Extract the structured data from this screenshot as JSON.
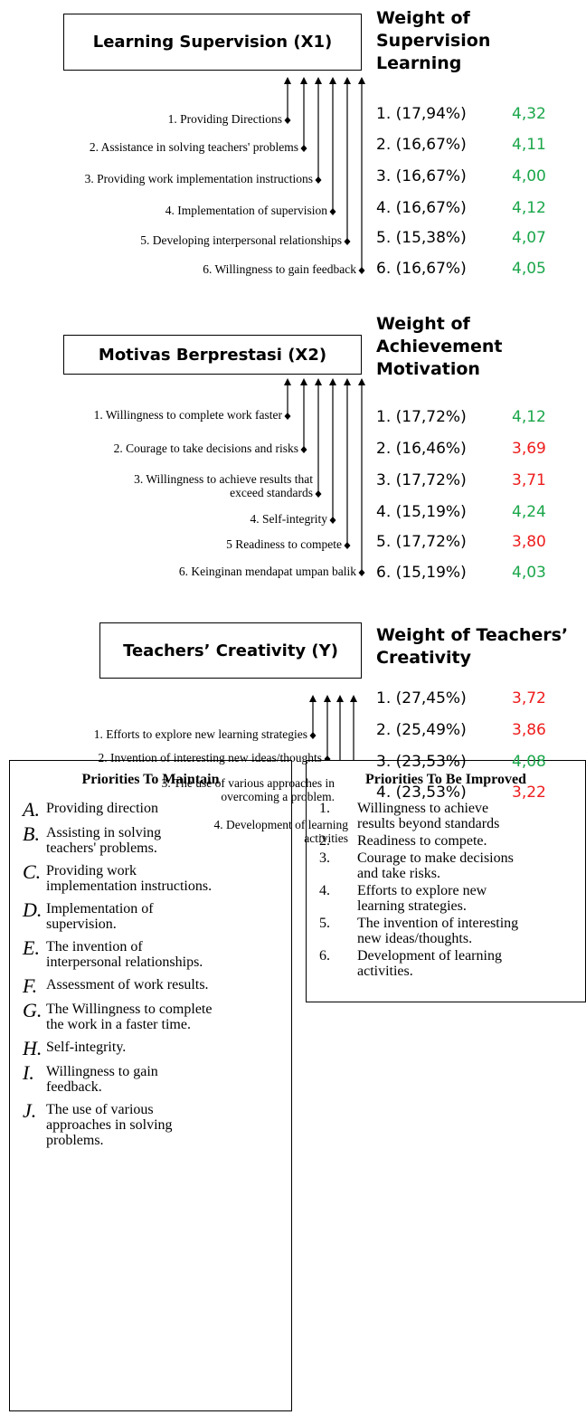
{
  "sections": [
    {
      "box": "Learning Supervision (X1)",
      "heading_lines": [
        "Weight of",
        "Supervision",
        "Learning"
      ],
      "items": [
        {
          "label_lines": [
            "1. Providing Directions"
          ],
          "weight": "1. (17,94%)",
          "score": "4,32",
          "color": "#1aa64a"
        },
        {
          "label_lines": [
            "2. Assistance in solving teachers' problems"
          ],
          "weight": "2. (16,67%)",
          "score": "4,11",
          "color": "#1aa64a"
        },
        {
          "label_lines": [
            "3. Providing work implementation instructions"
          ],
          "weight": "3. (16,67%)",
          "score": "4,00",
          "color": "#1aa64a"
        },
        {
          "label_lines": [
            "4. Implementation of supervision"
          ],
          "weight": "4. (16,67%)",
          "score": "4,12",
          "color": "#1aa64a"
        },
        {
          "label_lines": [
            "5. Developing interpersonal relationships"
          ],
          "weight": "5. (15,38%)",
          "score": "4,07",
          "color": "#1aa64a"
        },
        {
          "label_lines": [
            "6. Willingness to gain feedback"
          ],
          "weight": "6. (16,67%)",
          "score": "4,05",
          "color": "#1aa64a"
        }
      ]
    },
    {
      "box": "Motivas Berprestasi (X2)",
      "heading_lines": [
        "Weight of",
        "Achievement",
        "Motivation"
      ],
      "items": [
        {
          "label_lines": [
            "1. Willingness to complete work faster"
          ],
          "weight": "1. (17,72%)",
          "score": "4,12",
          "color": "#1aa64a"
        },
        {
          "label_lines": [
            "2. Courage to take decisions and risks"
          ],
          "weight": "2. (16,46%)",
          "score": "3,69",
          "color": "#ee1c1c"
        },
        {
          "label_lines": [
            "3. Willingness to achieve results that",
            "exceed standards"
          ],
          "weight": "3. (17,72%)",
          "score": "3,71",
          "color": "#ee1c1c"
        },
        {
          "label_lines": [
            "4. Self-integrity"
          ],
          "weight": "4. (15,19%)",
          "score": "4,24",
          "color": "#1aa64a"
        },
        {
          "label_lines": [
            "5 Readiness to compete"
          ],
          "weight": "5. (17,72%)",
          "score": "3,80",
          "color": "#ee1c1c"
        },
        {
          "label_lines": [
            "6. Keinginan mendapat umpan balik"
          ],
          "weight": "6. (15,19%)",
          "score": "4,03",
          "color": "#1aa64a"
        }
      ]
    },
    {
      "box": "Teachers’ Creativity (Y)",
      "heading_lines": [
        "Weight of Teachers’",
        "Creativity"
      ],
      "items": [
        {
          "label_lines": [
            "1. Efforts to explore new learning strategies"
          ],
          "weight": "1. (27,45%)",
          "score": "3,72",
          "color": "#ee1c1c"
        },
        {
          "label_lines": [
            "2. Invention of interesting new ideas/thoughts"
          ],
          "weight": "2. (25,49%)",
          "score": "3,86",
          "color": "#ee1c1c"
        },
        {
          "label_lines": [
            "3. The use of various approaches in",
            "overcoming a problem."
          ],
          "weight": "3. (23,53%)",
          "score": "4,08",
          "color": "#1aa64a"
        },
        {
          "label_lines": [
            "4. Development of learning",
            "activities"
          ],
          "weight": "4. (23,53%)",
          "score": "3,22",
          "color": "#ee1c1c"
        }
      ]
    }
  ],
  "maintain": {
    "title": "Priorities To Maintain",
    "items": [
      {
        "letter": "A.",
        "lines": [
          "Providing direction"
        ]
      },
      {
        "letter": "B.",
        "lines": [
          "Assisting in solving",
          "teachers' problems."
        ]
      },
      {
        "letter": "C.",
        "lines": [
          "Providing work",
          "implementation instructions."
        ]
      },
      {
        "letter": "D.",
        "lines": [
          "Implementation of",
          "supervision."
        ]
      },
      {
        "letter": "E.",
        "lines": [
          "The invention of",
          "interpersonal relationships."
        ]
      },
      {
        "letter": "F.",
        "lines": [
          "Assessment of work results."
        ]
      },
      {
        "letter": "G.",
        "lines": [
          "The Willingness to complete",
          "the work in a faster time."
        ]
      },
      {
        "letter": "H.",
        "lines": [
          "Self-integrity."
        ]
      },
      {
        "letter": "I.",
        "lines": [
          "Willingness to gain",
          "feedback."
        ]
      },
      {
        "letter": "J.",
        "lines": [
          "The use of various",
          "approaches in solving",
          "problems."
        ]
      }
    ]
  },
  "improve": {
    "title": "Priorities To Be Improved",
    "items": [
      {
        "number": "1.",
        "lines": [
          "Willingness to achieve",
          "results beyond standards"
        ]
      },
      {
        "number": "2.",
        "lines": [
          "Readiness to compete."
        ]
      },
      {
        "number": "3.",
        "lines": [
          "Courage to make decisions",
          "and take risks."
        ]
      },
      {
        "number": "4.",
        "lines": [
          "Efforts to explore new",
          "learning strategies."
        ]
      },
      {
        "number": "5.",
        "lines": [
          "The invention of interesting",
          "new ideas/thoughts."
        ]
      },
      {
        "number": "6.",
        "lines": [
          "Development of learning",
          "activities."
        ]
      }
    ]
  }
}
